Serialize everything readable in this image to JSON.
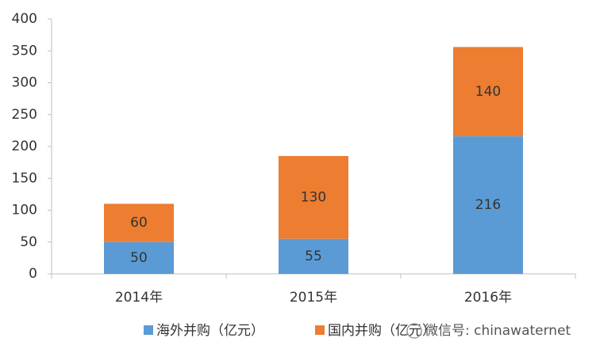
{
  "chart_data": {
    "type": "stacked_bar",
    "categories": [
      "2014年",
      "2015年",
      "2016年"
    ],
    "series": [
      {
        "name": "海外并购（亿元）",
        "color": "#5b9bd5",
        "values": [
          50,
          55,
          216
        ]
      },
      {
        "name": "国内并购（亿元）",
        "color": "#ed7d31",
        "values": [
          60,
          130,
          140
        ]
      }
    ],
    "ylim": [
      0,
      400
    ],
    "yticks": [
      0,
      50,
      100,
      150,
      200,
      250,
      300,
      350,
      400
    ],
    "grid": false,
    "legend": "bottom",
    "watermark": "微信号: chinawaternet"
  }
}
